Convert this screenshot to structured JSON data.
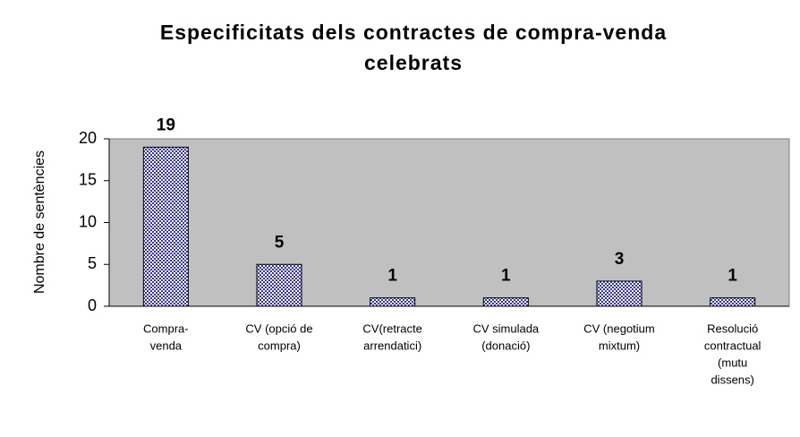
{
  "chart_data": {
    "type": "bar",
    "title": [
      "Especificitats dels contractes de compra-venda",
      "celebrats"
    ],
    "y_label": "Nombre de sentències",
    "categories": [
      [
        "Compra-",
        "venda"
      ],
      [
        "CV (opció de",
        "compra)"
      ],
      [
        "CV(retracte",
        "arrendatici)"
      ],
      [
        "CV simulada",
        "(donació)"
      ],
      [
        "CV (negotium",
        "mixtum)"
      ],
      [
        "Resolució",
        "contractual",
        "(mutu",
        "dissens)"
      ]
    ],
    "values": [
      19,
      5,
      1,
      1,
      3,
      1
    ],
    "color": "#3333aa",
    "ylim": [
      0,
      20
    ],
    "yticks": [
      0,
      5,
      10,
      15,
      20
    ],
    "grid": false
  }
}
